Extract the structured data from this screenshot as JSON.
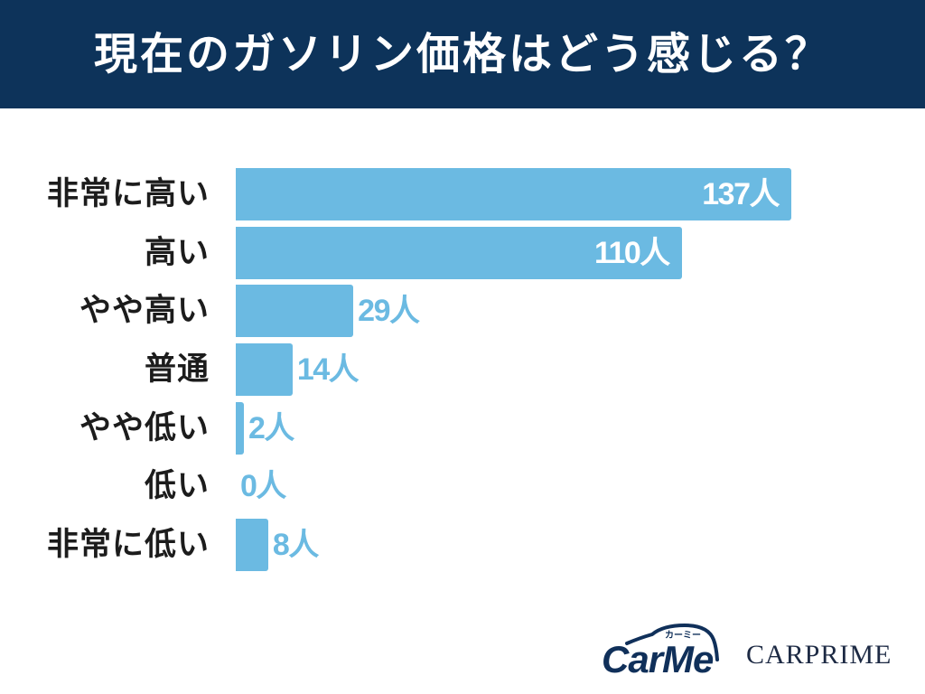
{
  "chart_data": {
    "type": "bar",
    "orientation": "horizontal",
    "title": "現在のガソリン価格はどう感じる？",
    "categories": [
      "非常に高い",
      "高い",
      "やや高い",
      "普通",
      "やや低い",
      "低い",
      "非常に低い"
    ],
    "values": [
      137,
      110,
      29,
      14,
      2,
      0,
      8
    ],
    "unit": "人",
    "xlim": [
      0,
      137
    ],
    "grid": false
  },
  "logos": {
    "carme": {
      "name": "CarMe",
      "kana": "カーミー"
    },
    "carprime": {
      "name": "CARPRIME"
    }
  },
  "colors": {
    "header_bg": "#0d335a",
    "title_text": "#ffffff",
    "bar": "#6bbae2",
    "category_text": "#1c1c1c",
    "value_inside": "#ffffff",
    "value_outside": "#6bbae2",
    "logo_navy": "#10305a"
  }
}
